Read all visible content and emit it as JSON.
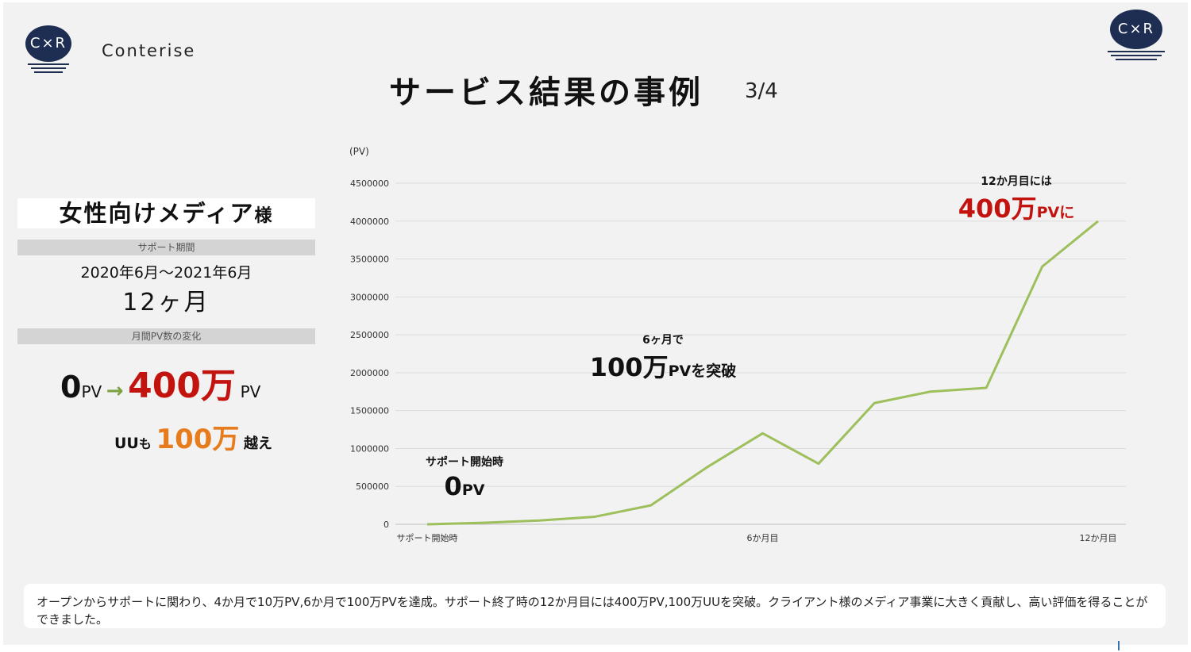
{
  "header": {
    "logo_text": "C×R",
    "brand": "Conterise",
    "title": "サービス結果の事例",
    "page_indicator": "3/4"
  },
  "left_panel": {
    "client_main": "女性向けメディア",
    "client_suffix": "様",
    "support_period_label": "サポート期間",
    "support_period_dates": "2020年6月〜2021年6月",
    "support_period_length": "12ヶ月",
    "pv_change_label": "月間PV数の変化",
    "pv_start_num": "0",
    "pv_unit": "PV",
    "arrow": "→",
    "pv_end_num": "400万",
    "uu_prefix": "UU",
    "uu_mo": "も",
    "uu_num": "100万",
    "uu_suffix": "越え"
  },
  "annotations": {
    "start_label": "サポート開始時",
    "start_value_num": "0",
    "start_value_unit": "PV",
    "mid_label": "6ヶ月で",
    "mid_value_num": "100万",
    "mid_value_unit": "PVを突破",
    "end_label": "12か月目には",
    "end_value_num": "400万",
    "end_value_unit": "PVに"
  },
  "chart_data": {
    "type": "line",
    "y_unit_label": "(PV)",
    "x": [
      0,
      1,
      2,
      3,
      4,
      5,
      6,
      7,
      8,
      9,
      10,
      11,
      12
    ],
    "x_tick_labels": {
      "0": "サポート開始時",
      "6": "6か月目",
      "12": "12か月目"
    },
    "series": [
      {
        "values": [
          0,
          20000,
          50000,
          100000,
          250000,
          750000,
          1200000,
          800000,
          1600000,
          1750000,
          1800000,
          3400000,
          4000000
        ]
      }
    ],
    "ylim": [
      0,
      4500000
    ],
    "yticks": [
      0,
      500000,
      1000000,
      1500000,
      2000000,
      2500000,
      3000000,
      3500000,
      4000000,
      4500000
    ],
    "grid": true,
    "line_color": "#9dbf5c"
  },
  "footer_note": "オープンからサポートに関わり、4か月で10万PV,6か月で100万PVを達成。サポート終了時の12か月目には400万PV,100万UUを突破。クライアント様のメディア事業に大きく貢献し、高い評価を得ることができました。"
}
